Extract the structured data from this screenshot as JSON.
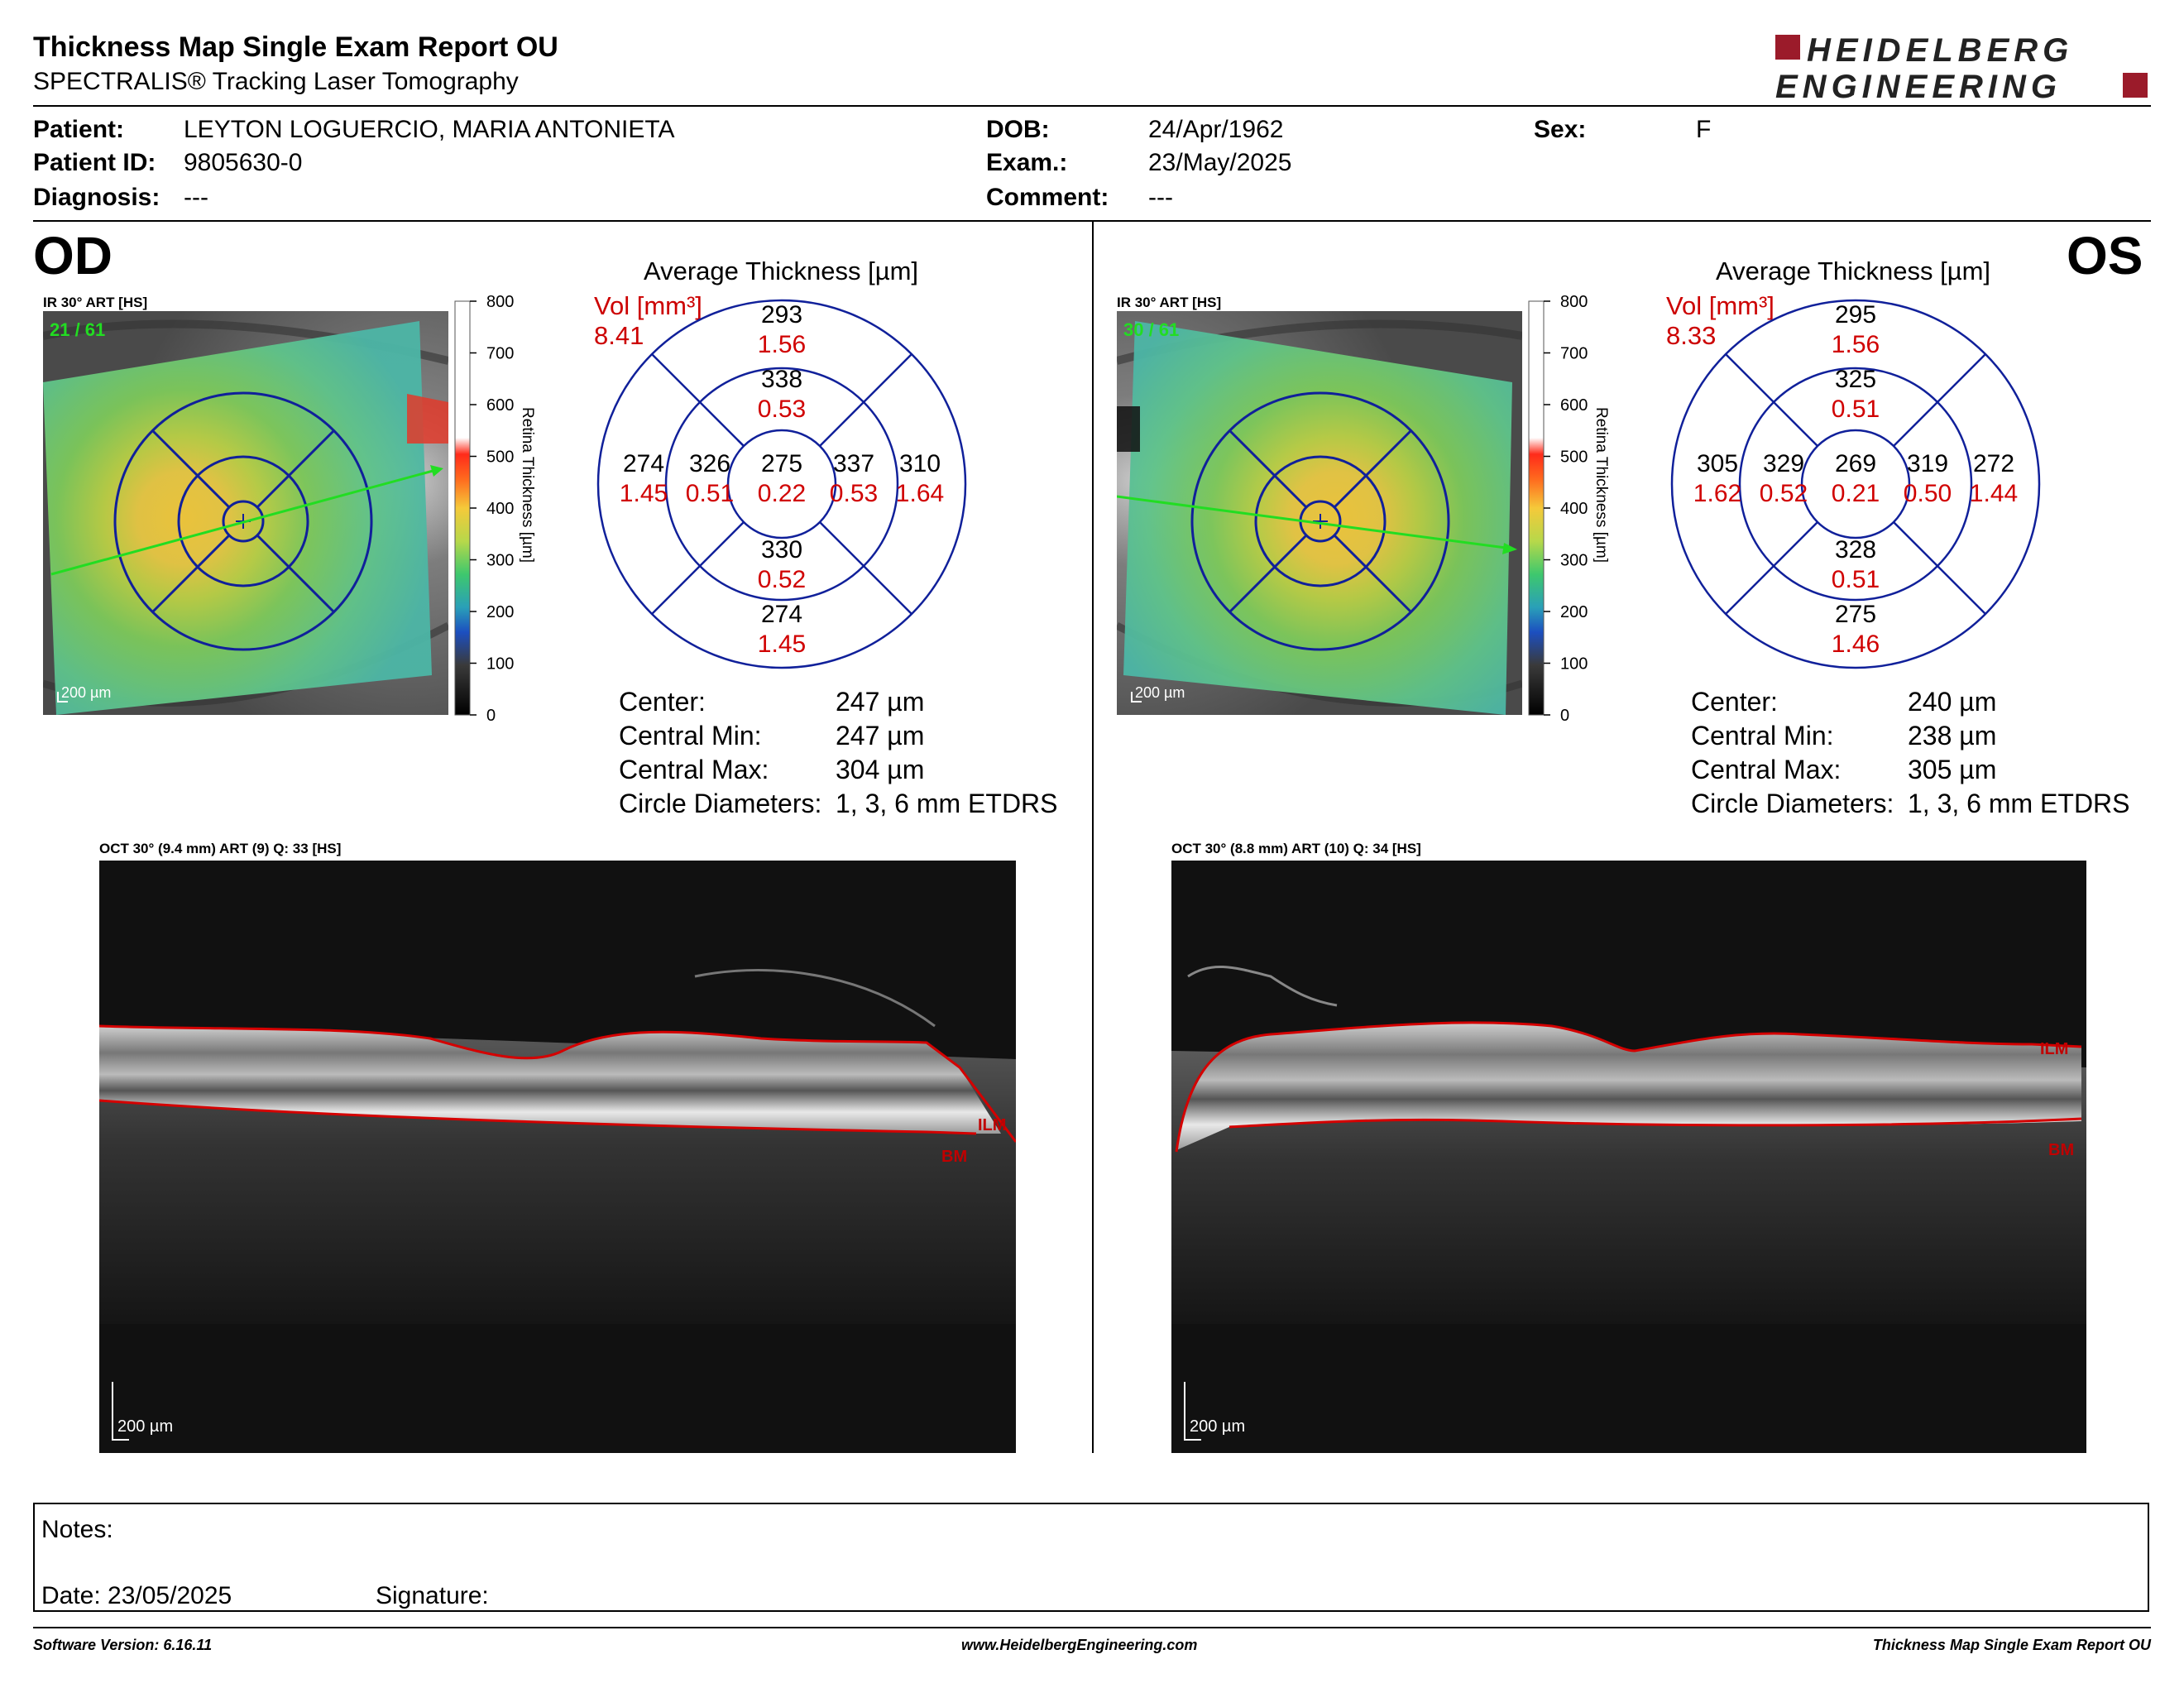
{
  "header": {
    "title": "Thickness Map Single Exam Report OU",
    "subtitle": "SPECTRALIS® Tracking Laser Tomography",
    "logo_line1": "HEIDELBERG",
    "logo_line2": "ENGINEERING"
  },
  "patient": {
    "patient_label": "Patient:",
    "patient_value": "LEYTON LOGUERCIO, MARIA ANTONIETA",
    "id_label": "Patient ID:",
    "id_value": "9805630-0",
    "diagnosis_label": "Diagnosis:",
    "diagnosis_value": "---",
    "dob_label": "DOB:",
    "dob_value": "24/Apr/1962",
    "exam_label": "Exam.:",
    "exam_value": "23/May/2025",
    "comment_label": "Comment:",
    "comment_value": "---",
    "sex_label": "Sex:",
    "sex_value": "F"
  },
  "scale_ticks": [
    "800",
    "700",
    "600",
    "500",
    "400",
    "300",
    "200",
    "100",
    "0"
  ],
  "scale_title": "Retina Thickness [µm]",
  "od": {
    "eye": "OD",
    "ir_label": "IR 30° ART [HS]",
    "ir_count": "21 / 61",
    "scalebar": "200 µm",
    "avg_title": "Average Thickness [µm]",
    "vol_label": "Vol [mm³]",
    "vol_total": "8.41",
    "grid": {
      "outer_top": [
        "293",
        "1.56"
      ],
      "inner_top": [
        "338",
        "0.53"
      ],
      "outer_left": [
        "274",
        "1.45"
      ],
      "inner_left": [
        "326",
        "0.51"
      ],
      "center": [
        "275",
        "0.22"
      ],
      "inner_right": [
        "337",
        "0.53"
      ],
      "outer_right": [
        "310",
        "1.64"
      ],
      "inner_bottom": [
        "330",
        "0.52"
      ],
      "outer_bottom": [
        "274",
        "1.45"
      ]
    },
    "stats": {
      "center_label": "Center:",
      "center_value": "247 µm",
      "min_label": "Central Min:",
      "min_value": "247 µm",
      "max_label": "Central Max:",
      "max_value": "304 µm",
      "diam_label": "Circle Diameters:",
      "diam_value": "1, 3, 6 mm ETDRS"
    },
    "oct_label": "OCT 30° (9.4 mm) ART (9) Q: 33 [HS]",
    "oct_scalebar": "200 µm",
    "ilm": "ILM",
    "bm": "BM"
  },
  "os": {
    "eye": "OS",
    "ir_label": "IR 30° ART [HS]",
    "ir_count": "30 / 61",
    "scalebar": "200 µm",
    "avg_title": "Average Thickness [µm]",
    "vol_label": "Vol [mm³]",
    "vol_total": "8.33",
    "grid": {
      "outer_top": [
        "295",
        "1.56"
      ],
      "inner_top": [
        "325",
        "0.51"
      ],
      "outer_left": [
        "305",
        "1.62"
      ],
      "inner_left": [
        "329",
        "0.52"
      ],
      "center": [
        "269",
        "0.21"
      ],
      "inner_right": [
        "319",
        "0.50"
      ],
      "outer_right": [
        "272",
        "1.44"
      ],
      "inner_bottom": [
        "328",
        "0.51"
      ],
      "outer_bottom": [
        "275",
        "1.46"
      ]
    },
    "stats": {
      "center_label": "Center:",
      "center_value": "240 µm",
      "min_label": "Central Min:",
      "min_value": "238 µm",
      "max_label": "Central Max:",
      "max_value": "305 µm",
      "diam_label": "Circle Diameters:",
      "diam_value": "1, 3, 6 mm ETDRS"
    },
    "oct_label": "OCT 30° (8.8 mm) ART (10) Q: 34 [HS]",
    "oct_scalebar": "200 µm",
    "ilm": "ILM",
    "bm": "BM"
  },
  "notes": {
    "notes_label": "Notes:",
    "date_label": "Date: 23/05/2025",
    "signature_label": "Signature:"
  },
  "footer": {
    "software": "Software Version: 6.16.11",
    "website": "www.HeidelbergEngineering.com",
    "report": "Thickness Map Single Exam Report OU"
  }
}
